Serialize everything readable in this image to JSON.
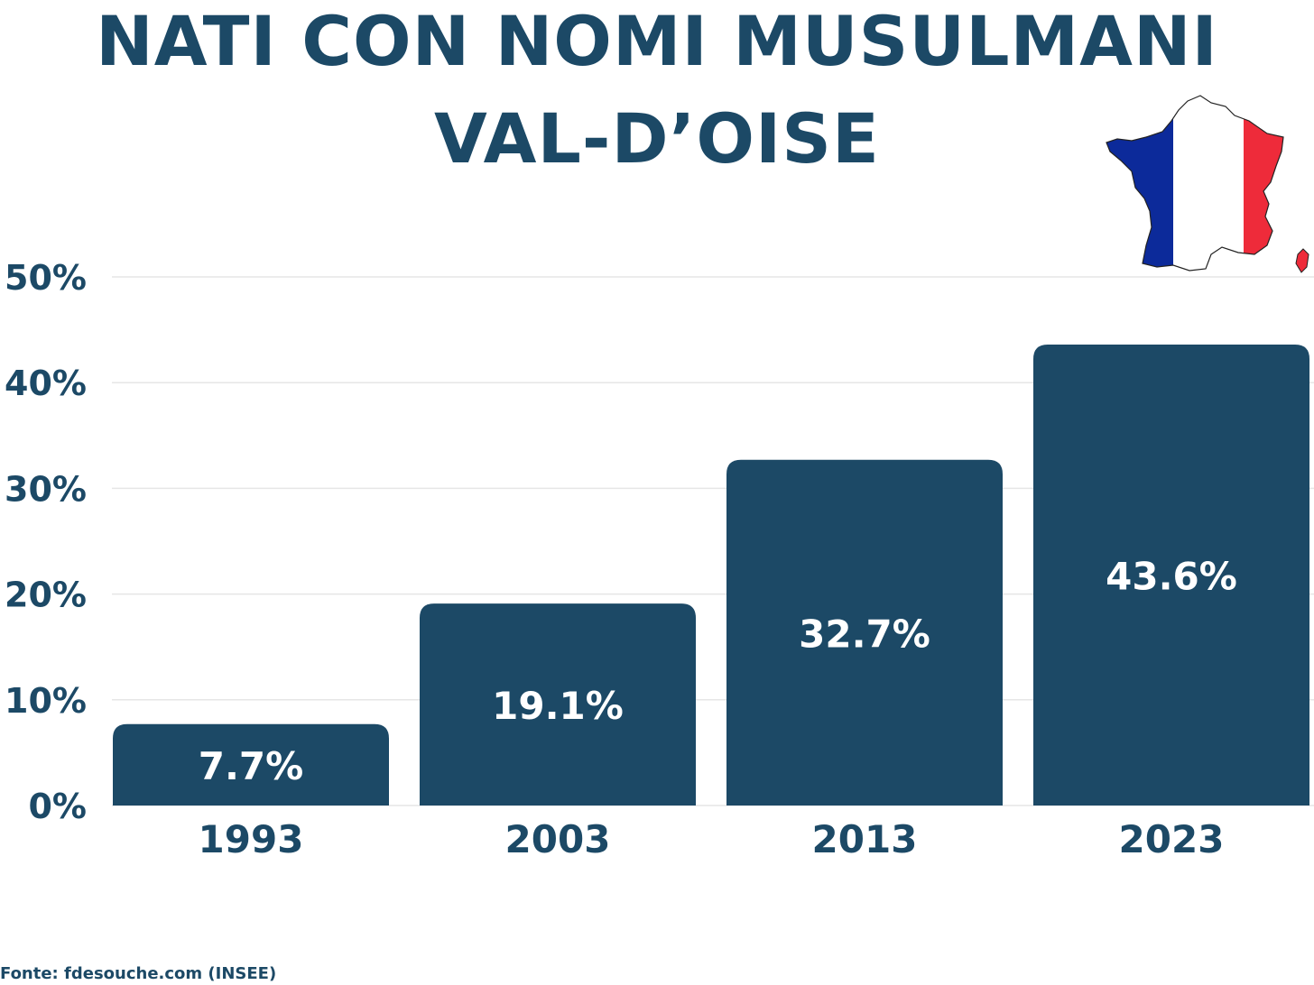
{
  "title": {
    "line1": "NATI CON NOMI MUSULMANI",
    "line2": "VAL-D’OISE"
  },
  "source": "Fonte: fdesouche.com (INSEE)",
  "colors": {
    "primary": "#1c4966",
    "gridline": "#e6e6e6",
    "label_on_bar": "#ffffff",
    "flag_blue": "#0c2a9a",
    "flag_white": "#ffffff",
    "flag_red": "#ee2b3a"
  },
  "chart_data": {
    "type": "bar",
    "title": "NATI CON NOMI MUSULMANI VAL-D’OISE",
    "xlabel": "",
    "ylabel": "",
    "categories": [
      "1993",
      "2003",
      "2013",
      "2023"
    ],
    "values": [
      7.7,
      19.1,
      32.7,
      43.6
    ],
    "value_labels": [
      "7.7%",
      "19.1%",
      "32.7%",
      "43.6%"
    ],
    "ylim": [
      0,
      50
    ],
    "yticks": [
      0,
      10,
      20,
      30,
      40,
      50
    ],
    "ytick_labels": [
      "0%",
      "10%",
      "20%",
      "30%",
      "40%",
      "50%"
    ],
    "grid": true,
    "legend": "none"
  },
  "decoration": {
    "icon": "france-flag-map-icon"
  }
}
